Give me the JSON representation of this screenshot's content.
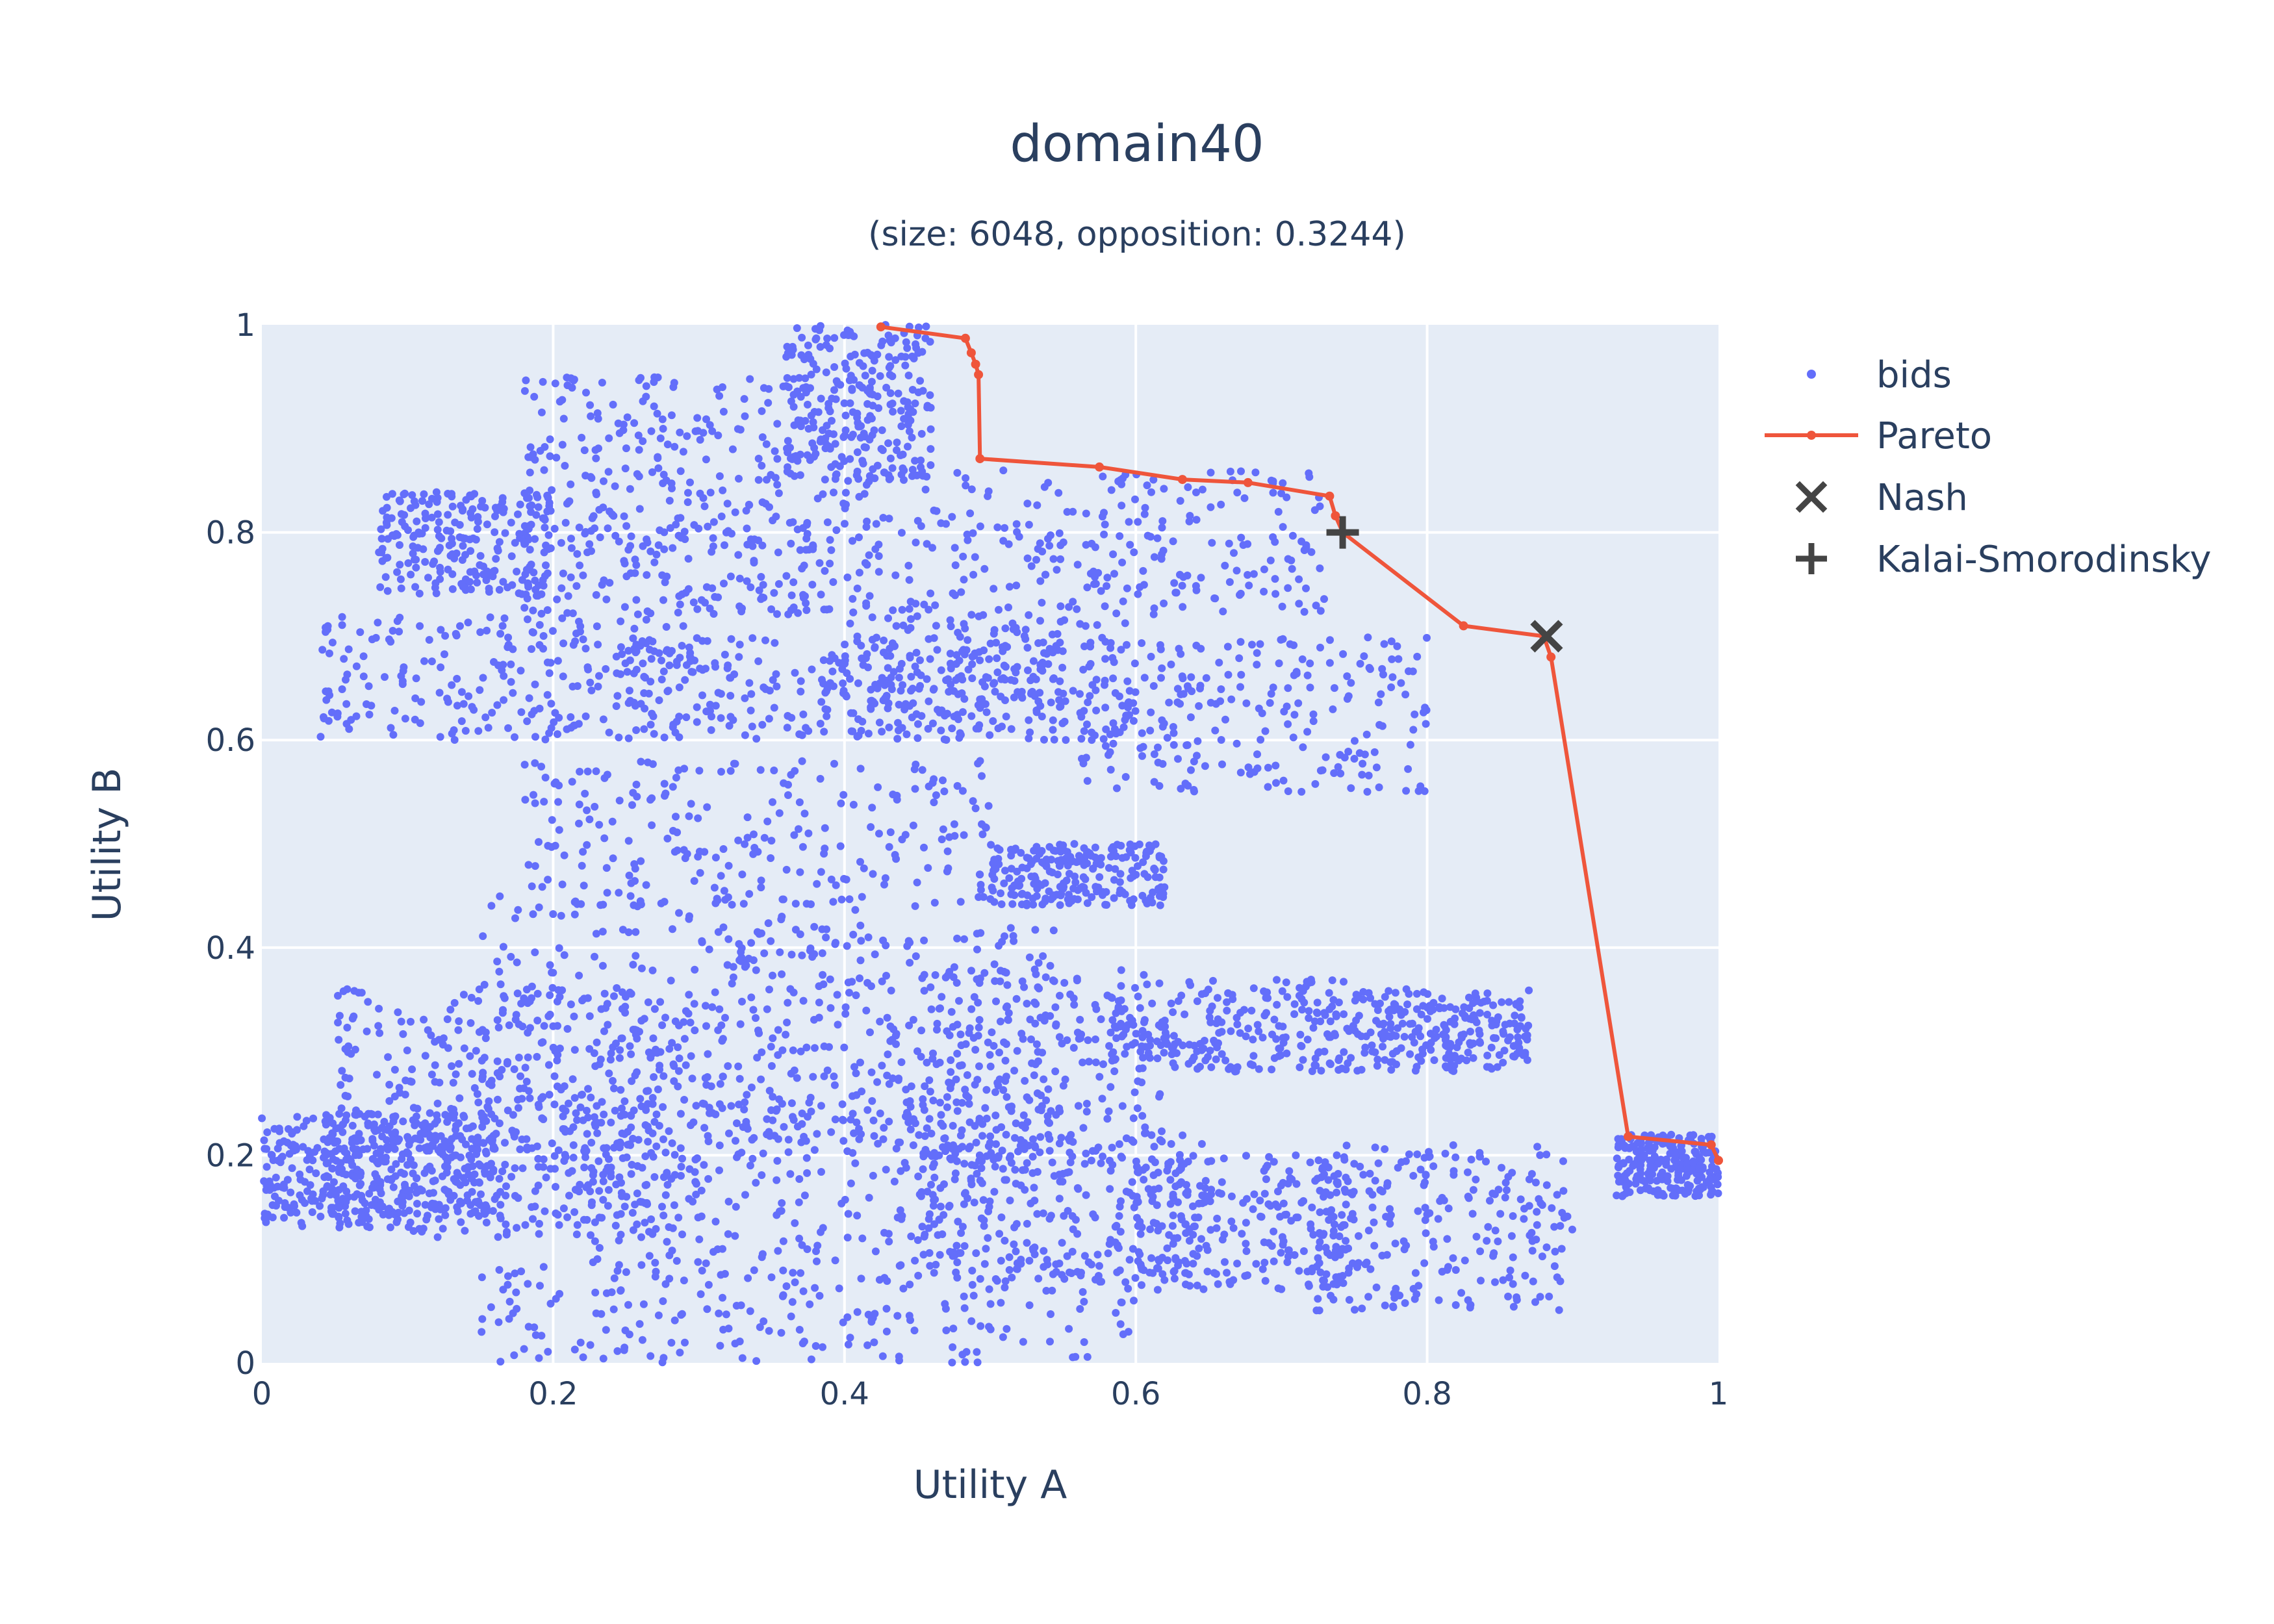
{
  "chart_data": {
    "type": "scatter",
    "title": "domain40",
    "subtitle": "(size: 6048, opposition: 0.3244)",
    "xlabel": "Utility A",
    "ylabel": "Utility B",
    "xlim": [
      0,
      1
    ],
    "ylim": [
      0,
      1
    ],
    "xticks": [
      "0",
      "0.2",
      "0.4",
      "0.6",
      "0.8",
      "1"
    ],
    "yticks": [
      "0",
      "0.2",
      "0.4",
      "0.6",
      "0.8",
      "1"
    ],
    "grid": true,
    "legend_position": "top-right",
    "colors": {
      "plot_bg": "#e5ecf6",
      "grid": "#ffffff",
      "bids": "#636efa",
      "pareto": "#ef553b",
      "marker": "#444444",
      "text": "#2a3f5f"
    },
    "series": [
      {
        "name": "bids",
        "mode": "markers",
        "count": 6048,
        "clusters": [
          {
            "x": [
              0.0,
              0.1
            ],
            "y": [
              0.13,
              0.24
            ]
          },
          {
            "x": [
              0.04,
              0.16
            ],
            "y": [
              0.14,
              0.24
            ]
          },
          {
            "x": [
              0.1,
              0.3
            ],
            "y": [
              0.12,
              0.24
            ]
          },
          {
            "x": [
              0.2,
              0.5
            ],
            "y": [
              0.1,
              0.25
            ]
          },
          {
            "x": [
              0.45,
              0.65
            ],
            "y": [
              0.08,
              0.22
            ]
          },
          {
            "x": [
              0.6,
              0.75
            ],
            "y": [
              0.07,
              0.2
            ]
          },
          {
            "x": [
              0.72,
              0.9
            ],
            "y": [
              0.05,
              0.21
            ]
          },
          {
            "x": [
              0.05,
              0.3
            ],
            "y": [
              0.24,
              0.36
            ]
          },
          {
            "x": [
              0.15,
              0.45
            ],
            "y": [
              0.22,
              0.45
            ]
          },
          {
            "x": [
              0.3,
              0.55
            ],
            "y": [
              0.2,
              0.42
            ]
          },
          {
            "x": [
              0.45,
              0.62
            ],
            "y": [
              0.18,
              0.38
            ]
          },
          {
            "x": [
              0.58,
              0.75
            ],
            "y": [
              0.28,
              0.37
            ]
          },
          {
            "x": [
              0.75,
              0.87
            ],
            "y": [
              0.28,
              0.36
            ]
          },
          {
            "x": [
              0.15,
              0.6
            ],
            "y": [
              0.0,
              0.1
            ]
          },
          {
            "x": [
              0.18,
              0.5
            ],
            "y": [
              0.44,
              0.58
            ]
          },
          {
            "x": [
              0.5,
              0.62
            ],
            "y": [
              0.44,
              0.5
            ]
          },
          {
            "x": [
              0.04,
              0.3
            ],
            "y": [
              0.6,
              0.72
            ]
          },
          {
            "x": [
              0.25,
              0.55
            ],
            "y": [
              0.6,
              0.7
            ]
          },
          {
            "x": [
              0.4,
              0.6
            ],
            "y": [
              0.6,
              0.72
            ]
          },
          {
            "x": [
              0.56,
              0.8
            ],
            "y": [
              0.55,
              0.7
            ]
          },
          {
            "x": [
              0.08,
              0.2
            ],
            "y": [
              0.74,
              0.84
            ]
          },
          {
            "x": [
              0.18,
              0.45
            ],
            "y": [
              0.72,
              0.82
            ]
          },
          {
            "x": [
              0.45,
              0.73
            ],
            "y": [
              0.72,
              0.86
            ]
          },
          {
            "x": [
              0.18,
              0.42
            ],
            "y": [
              0.82,
              0.95
            ]
          },
          {
            "x": [
              0.36,
              0.46
            ],
            "y": [
              0.85,
              1.0
            ]
          },
          {
            "x": [
              0.93,
              1.0
            ],
            "y": [
              0.16,
              0.22
            ]
          }
        ]
      },
      {
        "name": "Pareto",
        "mode": "lines+markers",
        "x": [
          0.425,
          0.483,
          0.487,
          0.49,
          0.492,
          0.493,
          0.575,
          0.632,
          0.677,
          0.733,
          0.737,
          0.742,
          0.825,
          0.88,
          0.885,
          0.938,
          0.995,
          1.0
        ],
        "y": [
          0.998,
          0.987,
          0.973,
          0.962,
          0.952,
          0.871,
          0.863,
          0.851,
          0.848,
          0.835,
          0.816,
          0.8,
          0.71,
          0.7,
          0.68,
          0.218,
          0.21,
          0.195
        ]
      },
      {
        "name": "Nash",
        "mode": "markers",
        "symbol": "x",
        "x": [
          0.882
        ],
        "y": [
          0.7
        ]
      },
      {
        "name": "Kalai-Smorodinsky",
        "mode": "markers",
        "symbol": "cross",
        "x": [
          0.742
        ],
        "y": [
          0.8
        ]
      }
    ]
  }
}
